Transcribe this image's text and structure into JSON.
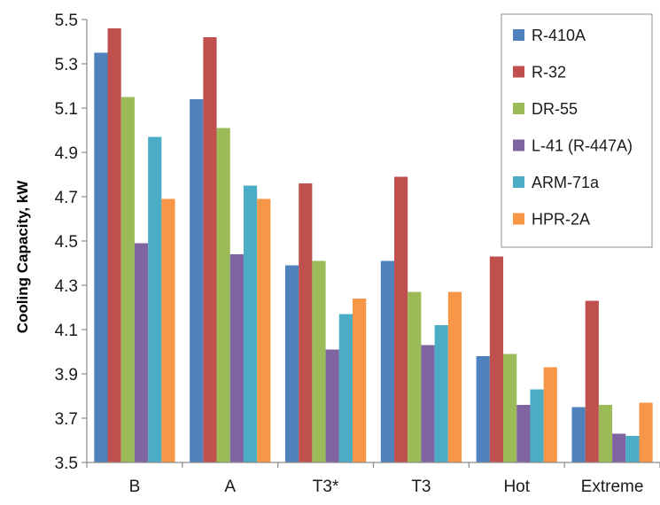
{
  "chart_data": {
    "type": "bar",
    "title": "",
    "xlabel": "",
    "ylabel": "Cooling Capacity, kW",
    "ylim": [
      3.5,
      5.5
    ],
    "yticks": [
      "3.5",
      "3.7",
      "3.9",
      "4.1",
      "4.3",
      "4.5",
      "4.7",
      "4.9",
      "5.1",
      "5.3",
      "5.5"
    ],
    "grid": false,
    "legend_position": "top-right",
    "categories": [
      "B",
      "A",
      "T3*",
      "T3",
      "Hot",
      "Extreme"
    ],
    "series": [
      {
        "name": "R-410A",
        "color": "#4F81BD",
        "values": [
          5.35,
          5.14,
          4.39,
          4.41,
          3.98,
          3.75
        ]
      },
      {
        "name": "R-32",
        "color": "#C0504D",
        "values": [
          5.46,
          5.42,
          4.76,
          4.79,
          4.43,
          4.23
        ]
      },
      {
        "name": "DR-55",
        "color": "#9BBB59",
        "values": [
          5.15,
          5.01,
          4.41,
          4.27,
          3.99,
          3.76
        ]
      },
      {
        "name": "L-41 (R-447A)",
        "color": "#8064A2",
        "values": [
          4.49,
          4.44,
          4.01,
          4.03,
          3.76,
          3.63
        ]
      },
      {
        "name": "ARM-71a",
        "color": "#4BACC6",
        "values": [
          4.97,
          4.75,
          4.17,
          4.12,
          3.83,
          3.62
        ]
      },
      {
        "name": "HPR-2A",
        "color": "#F79646",
        "values": [
          4.69,
          4.69,
          4.24,
          4.27,
          3.93,
          3.77
        ]
      }
    ]
  }
}
